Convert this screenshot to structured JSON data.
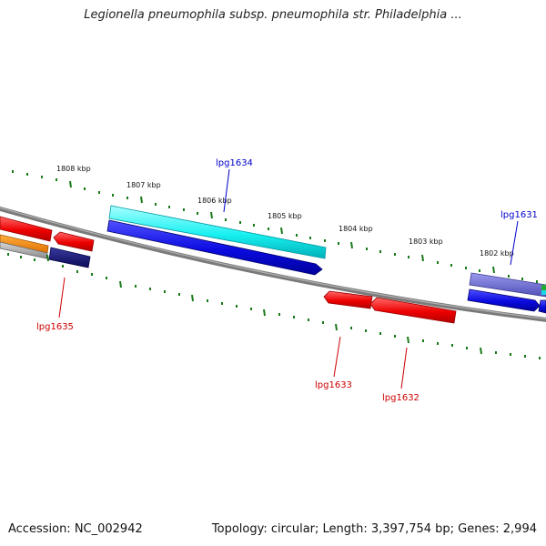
{
  "map": {
    "title": "Legionella pneumophila subsp. pneumophila str. Philadelphia ...",
    "accession": "Accession: NC_002942",
    "summary": "Topology: circular; Length: 3,397,754 bp; Genes: 2,994"
  },
  "colors": {
    "backbone": "#808080",
    "tick": "#1a7a1a",
    "forward_label": "#0000cc",
    "reverse_label": "#cc0000"
  },
  "scale_labels": [
    "1808 kbp",
    "1807 kbp",
    "1806 kbp",
    "1805 kbp",
    "1804 kbp",
    "1803 kbp",
    "1802 kbp"
  ],
  "gene_labels": {
    "lpg1634": "lpg1634",
    "lpg1631": "lpg1631",
    "lpg1635": "lpg1635",
    "lpg1633": "lpg1633",
    "lpg1632": "lpg1632"
  }
}
